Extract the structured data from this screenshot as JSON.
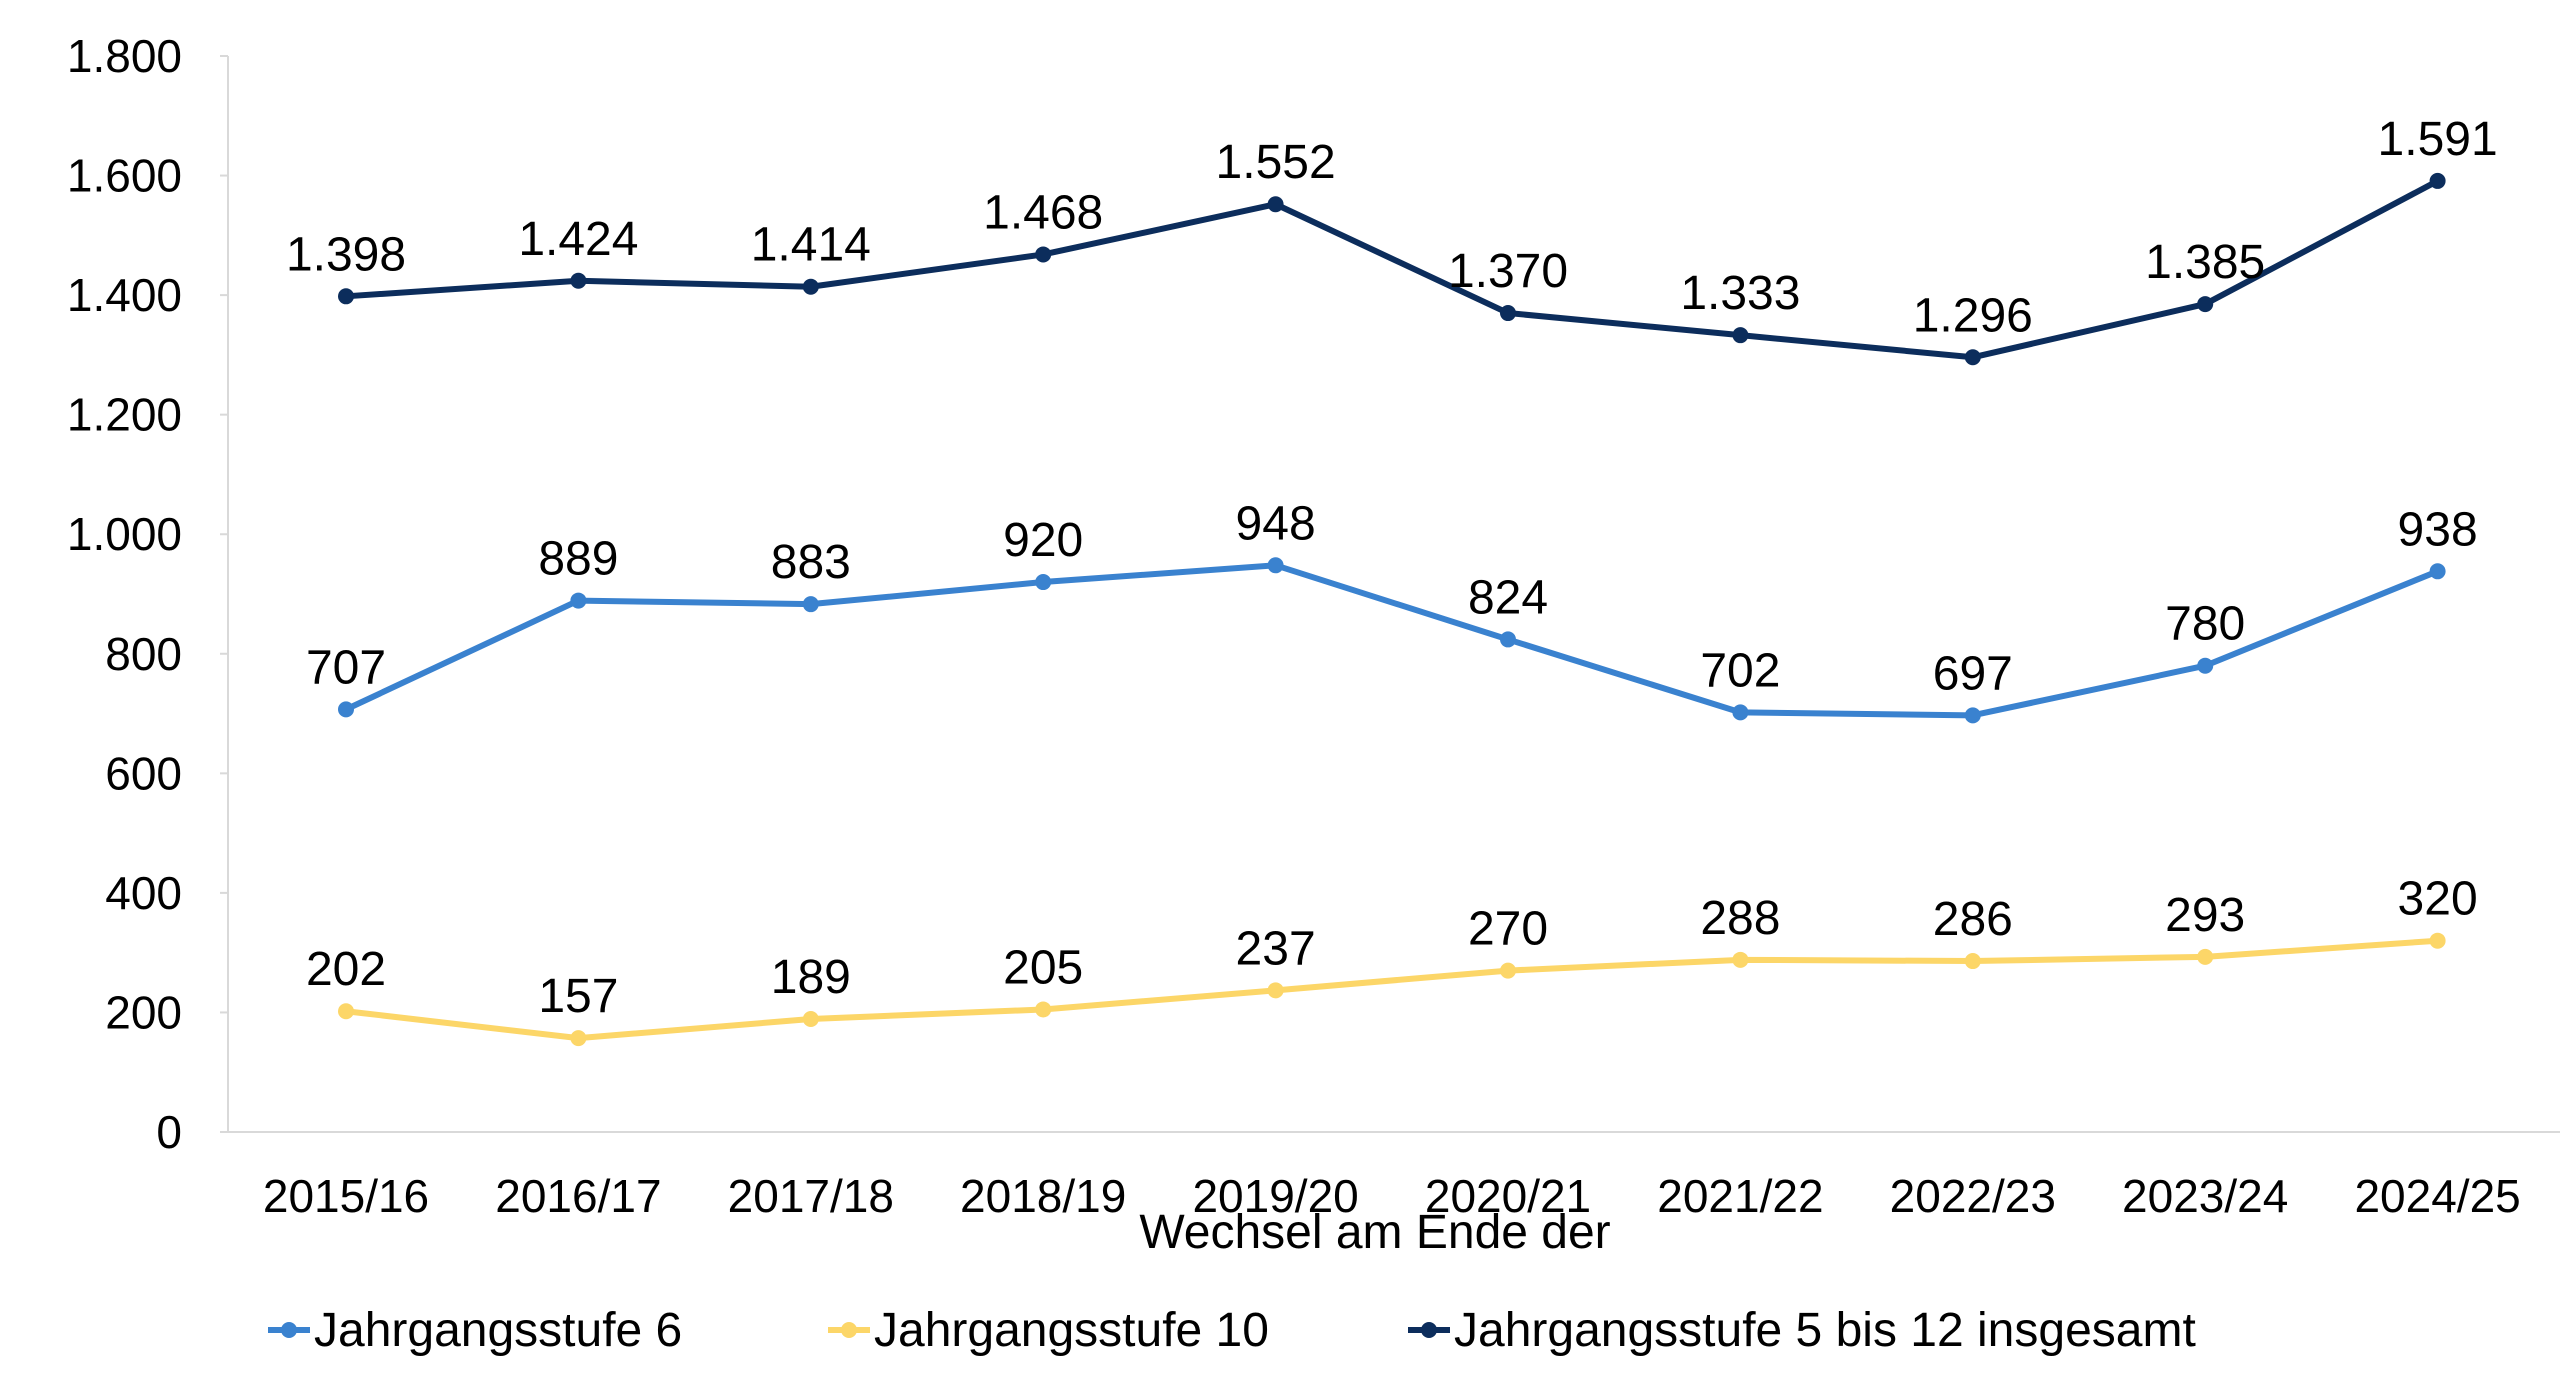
{
  "chart_data": {
    "type": "line",
    "title": "",
    "xlabel": "Wechsel am Ende der",
    "ylabel": "",
    "categories": [
      "2015/16",
      "2016/17",
      "2017/18",
      "2018/19",
      "2019/20",
      "2020/21",
      "2021/22",
      "2022/23",
      "2023/24",
      "2024/25"
    ],
    "ylim": [
      0,
      1800
    ],
    "yticks": [
      0,
      200,
      400,
      600,
      800,
      1000,
      1200,
      1400,
      1600,
      1800
    ],
    "ytick_labels": [
      "0",
      "200",
      "400",
      "600",
      "800",
      "1.000",
      "1.200",
      "1.400",
      "1.600",
      "1.800"
    ],
    "grid": false,
    "legend_position": "bottom",
    "series": [
      {
        "name": "Jahrgangsstufe 6",
        "color": "#3a82cf",
        "values": [
          707,
          889,
          883,
          920,
          948,
          824,
          702,
          697,
          780,
          938
        ],
        "labels": [
          "707",
          "889",
          "883",
          "920",
          "948",
          "824",
          "702",
          "697",
          "780",
          "938"
        ]
      },
      {
        "name": "Jahrgangsstufe 10",
        "color": "#fcd668",
        "values": [
          202,
          157,
          189,
          205,
          237,
          270,
          288,
          286,
          293,
          320
        ],
        "labels": [
          "202",
          "157",
          "189",
          "205",
          "237",
          "270",
          "288",
          "286",
          "293",
          "320"
        ]
      },
      {
        "name": "Jahrgangsstufe 5 bis 12 insgesamt",
        "color": "#0c2d5c",
        "values": [
          1398,
          1424,
          1414,
          1468,
          1552,
          1370,
          1333,
          1296,
          1385,
          1591
        ],
        "labels": [
          "1.398",
          "1.424",
          "1.414",
          "1.468",
          "1.552",
          "1.370",
          "1.333",
          "1.296",
          "1.385",
          "1.591"
        ]
      }
    ]
  }
}
